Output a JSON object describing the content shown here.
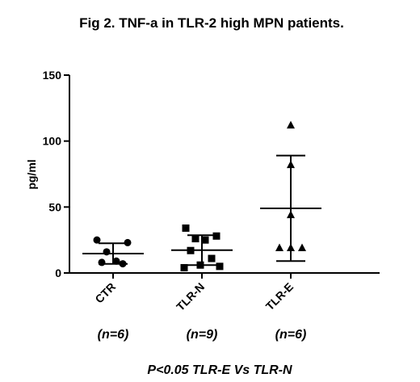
{
  "chart_data": {
    "type": "dot",
    "title": "Fig 2.   TNF-a  in TLR-2 high MPN patients.",
    "y_label": "pg/ml",
    "categories": [
      "CTR",
      "TLR-N",
      "TLR-E"
    ],
    "groups": [
      {
        "marker": "circle",
        "values": [
          25,
          23,
          16,
          9,
          8,
          7
        ],
        "mean": 14.7,
        "sd": 7.8
      },
      {
        "marker": "square",
        "values": [
          34,
          28,
          26,
          25,
          17,
          11,
          6,
          5,
          4
        ],
        "mean": 17.3,
        "sd": 11.3
      },
      {
        "marker": "triangle",
        "values": [
          112,
          82,
          44,
          19,
          19,
          19
        ],
        "mean": 49,
        "sd": 40
      }
    ],
    "group_notes": [
      "(n=6)",
      "(n=9)",
      "(n=6)"
    ],
    "footnote": "P<0.05   TLR-E Vs TLR-N",
    "color": "#000000",
    "ylim": [
      0,
      150
    ],
    "yticks": [
      0,
      50,
      100,
      150
    ]
  }
}
